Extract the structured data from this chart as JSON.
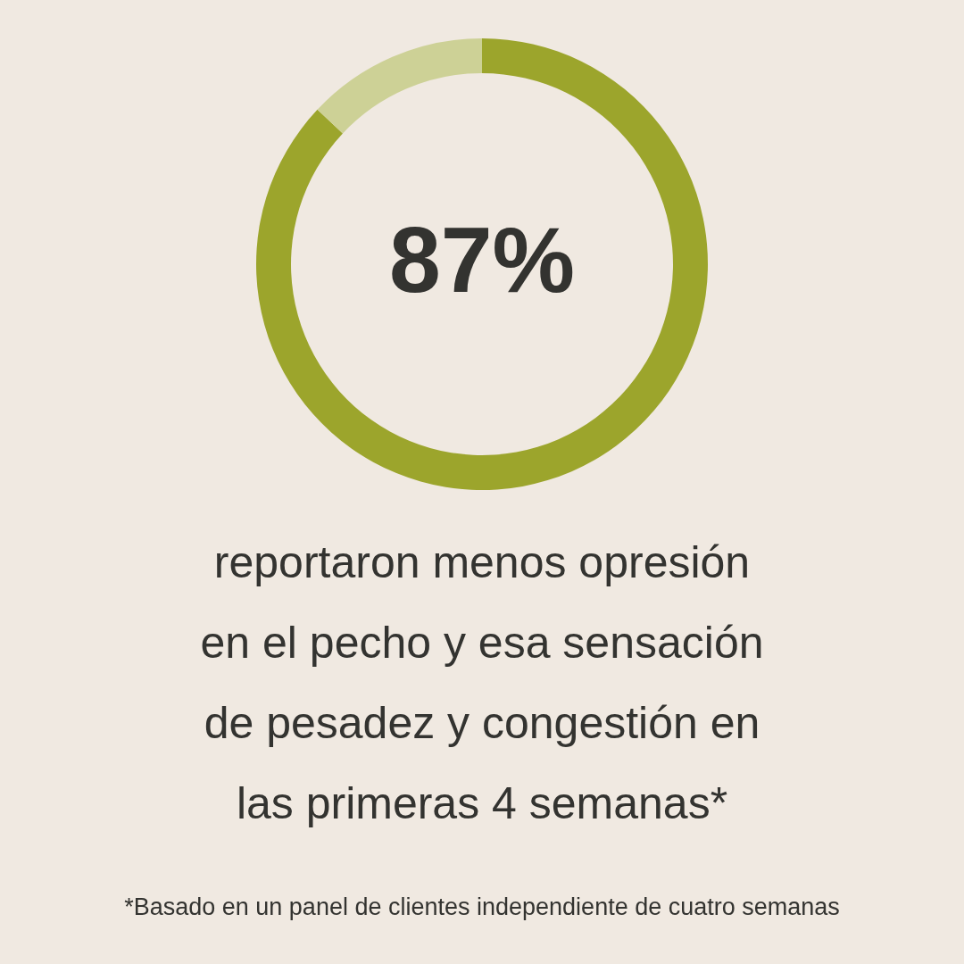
{
  "chart_data": {
    "type": "donut",
    "categories": [
      null,
      null
    ],
    "values": [
      87,
      13
    ],
    "colors": [
      "#9ca52c",
      "#cdd196"
    ],
    "value_labels": [
      "87%",
      null
    ],
    "annotations": [
      "reportaron menos opresión\nen el pecho y esa sensación\nde pesadez y congestión en\nlas primeras 4 semanas*",
      "*Basado en un panel de clientes independiente de cuatro semanas"
    ]
  }
}
